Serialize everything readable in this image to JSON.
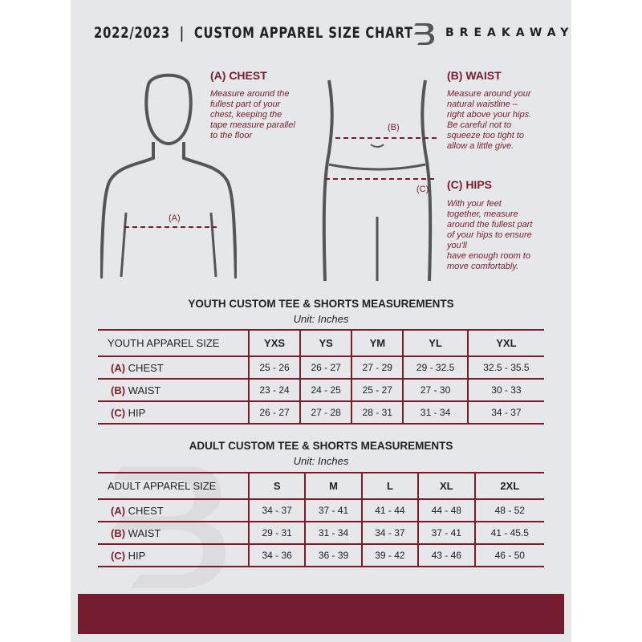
{
  "header": {
    "title": "2022/2023  |  CUSTOM APPAREL SIZE CHART",
    "brand": "BREAKAWAY"
  },
  "measures": {
    "chest": {
      "title": "(A) CHEST",
      "desc": [
        "Measure around the",
        "fullest part of your",
        "chest, keeping the",
        "tape measure parallel",
        "to the floor"
      ],
      "marker": "(A)"
    },
    "waist": {
      "title": "(B) WAIST",
      "desc": [
        "Measure around your",
        "natural waistline –",
        "right above your hips.",
        "Be careful not to",
        "squeeze too tight to",
        "allow a little give."
      ],
      "marker": "(B)"
    },
    "hips": {
      "title": "(C) HIPS",
      "desc": [
        "With your feet",
        "together, measure",
        "around the fullest part",
        "of your hips to ensure",
        "you'll",
        "have enough room to",
        "move comfortably."
      ],
      "marker": "(C)"
    }
  },
  "youth": {
    "title": "YOUTH CUSTOM TEE & SHORTS MEASUREMENTS",
    "unit": "Unit: Inches",
    "header": "YOUTH APPAREL SIZE",
    "sizes": [
      "YXS",
      "YS",
      "YM",
      "YL",
      "YXL"
    ],
    "rows": [
      {
        "letter": "(A)",
        "label": "CHEST",
        "values": [
          "25 - 26",
          "26 - 27",
          "27 - 29",
          "29 - 32.5",
          "32.5 - 35.5"
        ]
      },
      {
        "letter": "(B)",
        "label": "WAIST",
        "values": [
          "23 - 24",
          "24 - 25",
          "25 - 27",
          "27 - 30",
          "30 - 33"
        ]
      },
      {
        "letter": "(C)",
        "label": "HIP",
        "values": [
          "26 - 27",
          "27 - 28",
          "28 - 31",
          "31 - 34",
          "34 - 37"
        ]
      }
    ]
  },
  "adult": {
    "title": "ADULT CUSTOM TEE & SHORTS MEASUREMENTS",
    "unit": "Unit: Inches",
    "header": "ADULT APPAREL SIZE",
    "sizes": [
      "S",
      "M",
      "L",
      "XL",
      "2XL"
    ],
    "rows": [
      {
        "letter": "(A)",
        "label": "CHEST",
        "values": [
          "34 - 37",
          "37 - 41",
          "41 - 44",
          "44 - 48",
          "48 - 52"
        ]
      },
      {
        "letter": "(B)",
        "label": "WAIST",
        "values": [
          "29 - 31",
          "31 - 34",
          "34 - 37",
          "37 - 41",
          "41 - 45.5"
        ]
      },
      {
        "letter": "(C)",
        "label": "HIP",
        "values": [
          "34 - 36",
          "36 - 39",
          "39 - 42",
          "43 - 46",
          "46 - 50"
        ]
      }
    ]
  },
  "colors": {
    "accent": "#7a1c2e",
    "background": "#e6e7e9"
  }
}
